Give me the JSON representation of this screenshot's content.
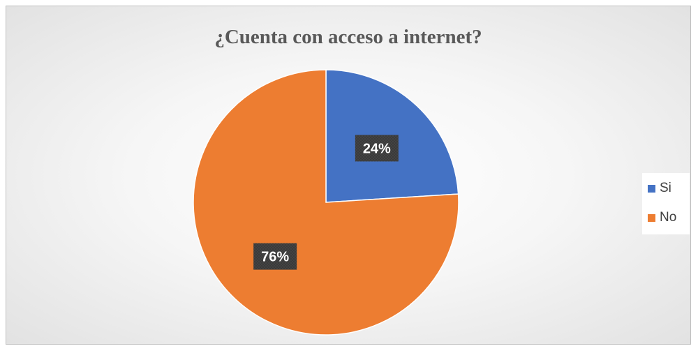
{
  "chart_data": {
    "type": "pie",
    "title": "¿Cuenta con acceso a internet?",
    "categories": [
      "Si",
      "No"
    ],
    "values": [
      24,
      76
    ],
    "value_labels": [
      "24%",
      "76%"
    ],
    "colors": [
      "#4472c4",
      "#ed7d31"
    ],
    "start_angle": "top (12 o'clock), clockwise",
    "legend": {
      "position": "right",
      "entries": [
        "Si",
        "No"
      ]
    },
    "data_label_style": {
      "background": "#3a3a3a",
      "text_color": "#ffffff"
    }
  }
}
